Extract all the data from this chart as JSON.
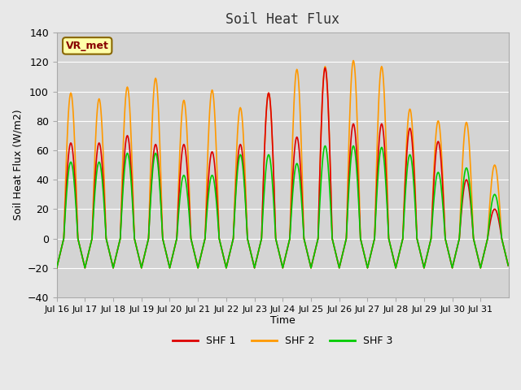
{
  "title": "Soil Heat Flux",
  "xlabel": "Time",
  "ylabel": "Soil Heat Flux (W/m2)",
  "ylim": [
    -40,
    140
  ],
  "yticks": [
    -40,
    -20,
    0,
    20,
    40,
    60,
    80,
    100,
    120,
    140
  ],
  "line_colors": [
    "#dd0000",
    "#ff9900",
    "#00cc00"
  ],
  "line_labels": [
    "SHF 1",
    "SHF 2",
    "SHF 3"
  ],
  "bg_color": "#e8e8e8",
  "plot_bg_color": "#d4d4d4",
  "grid_color": "#ffffff",
  "vr_met_label": "VR_met",
  "vr_met_bg": "#ffffaa",
  "vr_met_border": "#886600",
  "xtick_labels": [
    "Jul 16",
    "Jul 17",
    "Jul 18",
    "Jul 19",
    "Jul 20",
    "Jul 21",
    "Jul 22",
    "Jul 23",
    "Jul 24",
    "Jul 25",
    "Jul 26",
    "Jul 27",
    "Jul 28",
    "Jul 29",
    "Jul 30",
    "Jul 31"
  ],
  "shf1_day_peaks": [
    65,
    65,
    70,
    64,
    64,
    59,
    64,
    99,
    69,
    116,
    78,
    78,
    75,
    66,
    40,
    20
  ],
  "shf2_day_peaks": [
    99,
    95,
    103,
    109,
    94,
    101,
    89,
    99,
    115,
    117,
    121,
    117,
    88,
    80,
    79,
    50
  ],
  "shf3_day_peaks": [
    52,
    52,
    58,
    58,
    43,
    43,
    57,
    57,
    51,
    63,
    63,
    62,
    57,
    45,
    48,
    30
  ],
  "night_val": -20,
  "n_points_per_day": 48,
  "n_days": 16
}
